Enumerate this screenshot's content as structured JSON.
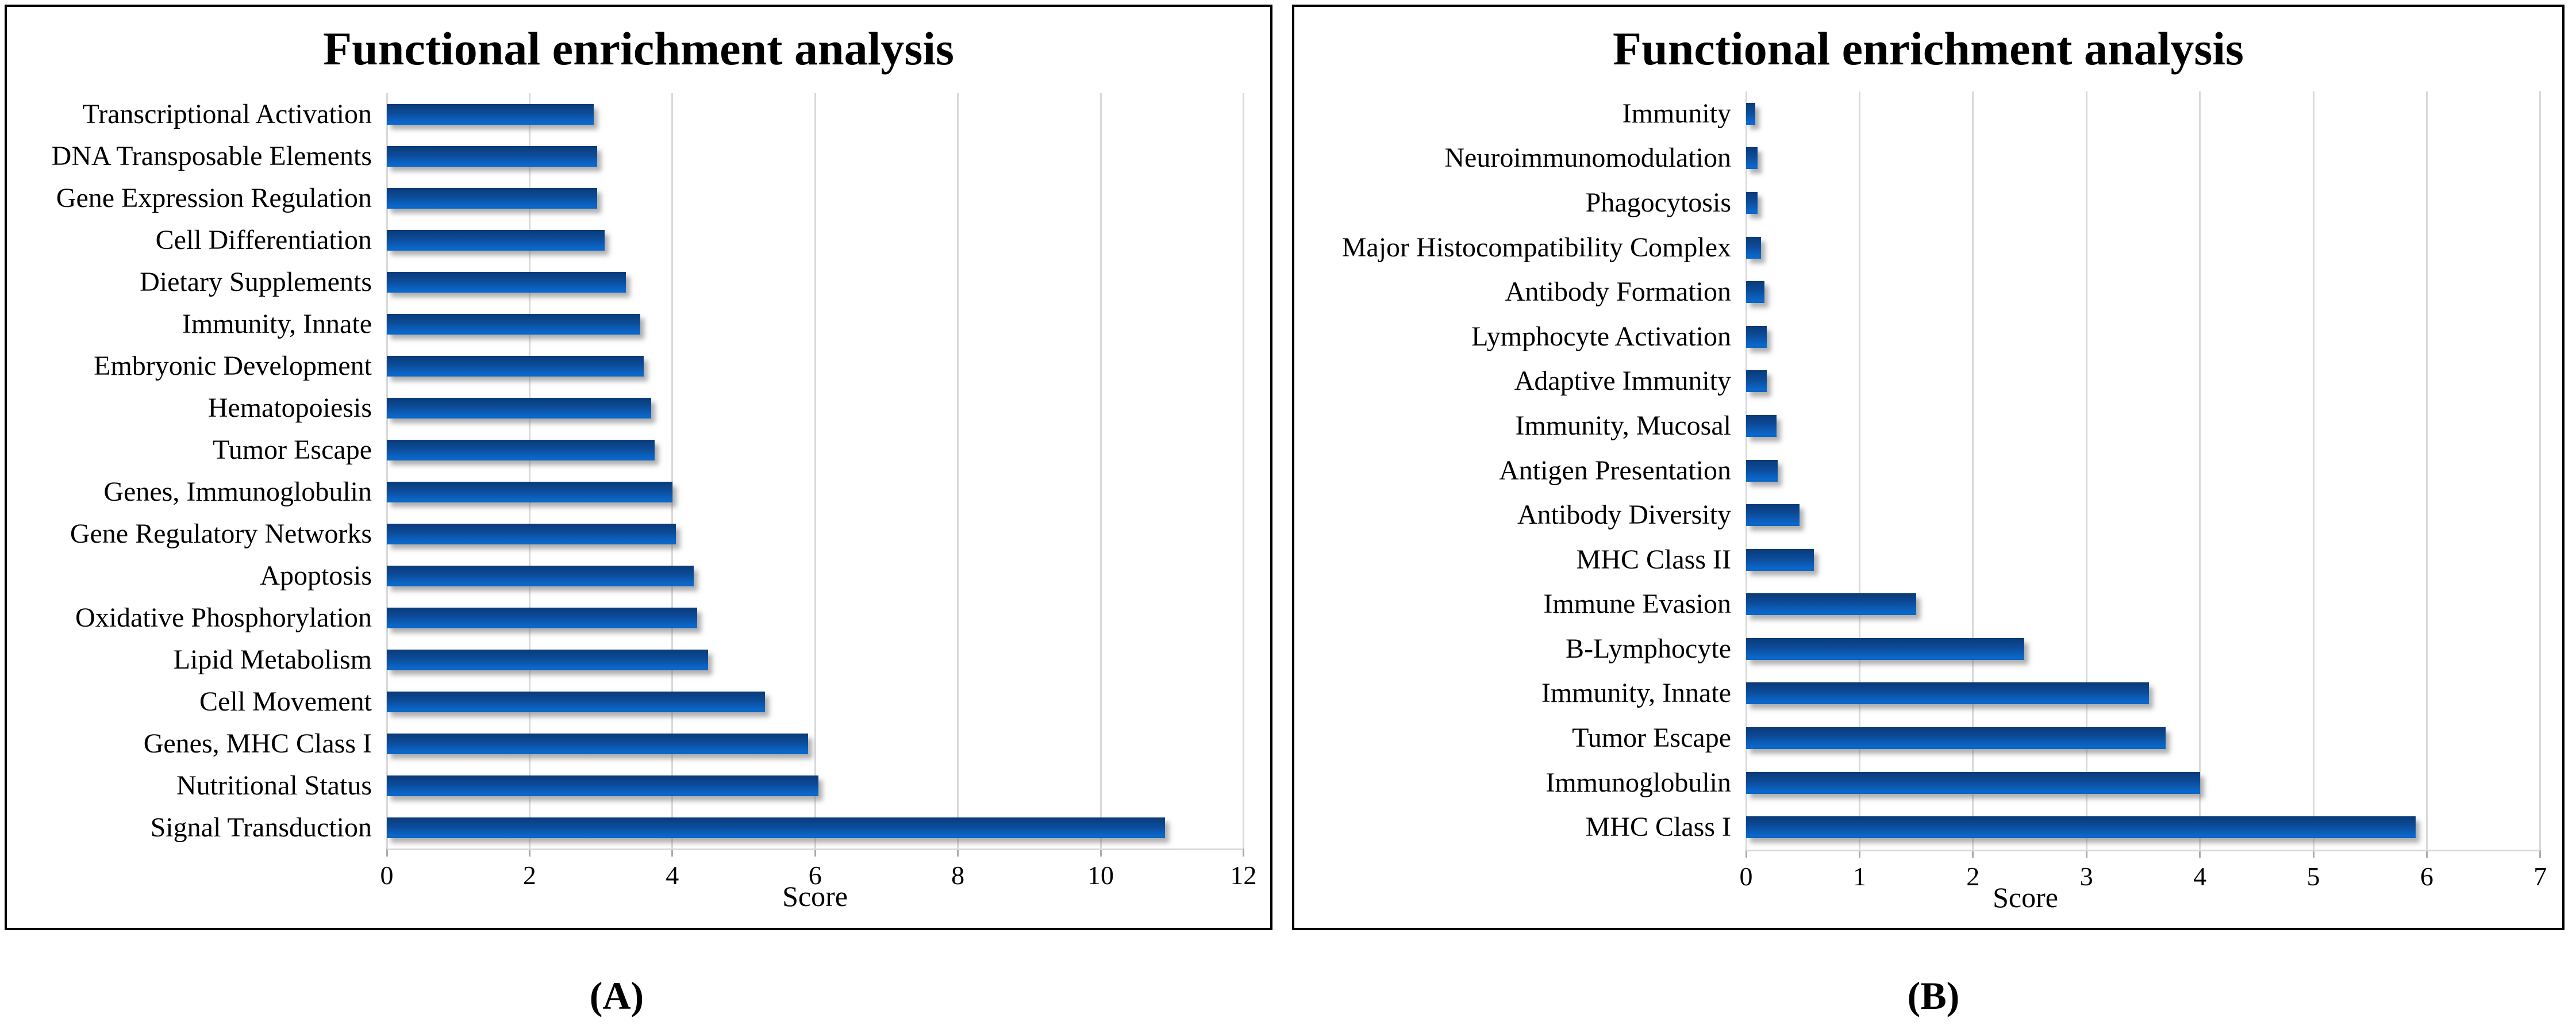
{
  "figure": {
    "background": "#ffffff"
  },
  "colors": {
    "bar_gradient_top": "#0a3a78",
    "bar_gradient_mid": "#0c4c9a",
    "bar_gradient_bottom": "#0b68cc",
    "gridline": "#d9d9d9",
    "tick_mark": "#ababab",
    "text": "#000000",
    "panel_border": "#000000",
    "bar_shadow": "rgba(110,110,110,0.55)"
  },
  "chart_data": [
    {
      "type": "bar",
      "orientation": "horizontal",
      "title": "Functional enrichment analysis",
      "xlabel": "Score",
      "caption": "(A)",
      "xlim": [
        0,
        12
      ],
      "x_ticks": [
        "0",
        "2",
        "4",
        "6",
        "8",
        "10",
        "12"
      ],
      "grid": true,
      "legend": false,
      "categories": [
        "Transcriptional Activation",
        "DNA Transposable Elements",
        "Gene Expression Regulation",
        "Cell Differentiation",
        "Dietary Supplements",
        "Immunity, Innate",
        "Embryonic Development",
        "Hematopoiesis",
        "Tumor Escape",
        "Genes, Immunoglobulin",
        "Gene Regulatory Networks",
        "Apoptosis",
        "Oxidative Phosphorylation",
        "Lipid Metabolism",
        "Cell Movement",
        "Genes, MHC Class I",
        "Nutritional Status",
        "Signal Transduction"
      ],
      "values": [
        2.9,
        2.95,
        2.95,
        3.05,
        3.35,
        3.55,
        3.6,
        3.7,
        3.75,
        4.0,
        4.05,
        4.3,
        4.35,
        4.5,
        5.3,
        5.9,
        6.05,
        10.9
      ]
    },
    {
      "type": "bar",
      "orientation": "horizontal",
      "title": "Functional enrichment analysis",
      "xlabel": "Score",
      "caption": "(B)",
      "xlim": [
        0,
        7
      ],
      "x_ticks": [
        "0",
        "1",
        "2",
        "3",
        "4",
        "5",
        "6",
        "7"
      ],
      "grid": true,
      "legend": false,
      "categories": [
        "Immunity",
        "Neuroimmunomodulation",
        "Phagocytosis",
        "Major Histocompatibility Complex",
        "Antibody Formation",
        "Lymphocyte Activation",
        "Adaptive Immunity",
        "Immunity, Mucosal",
        "Antigen Presentation",
        "Antibody Diversity",
        "MHC Class II",
        "Immune Evasion",
        "B-Lymphocyte",
        "Immunity, Innate",
        "Tumor Escape",
        "Immunoglobulin",
        "MHC Class I"
      ],
      "values": [
        0.08,
        0.1,
        0.1,
        0.13,
        0.16,
        0.18,
        0.18,
        0.27,
        0.28,
        0.47,
        0.6,
        1.5,
        2.45,
        3.55,
        3.7,
        4.0,
        5.9
      ]
    }
  ]
}
